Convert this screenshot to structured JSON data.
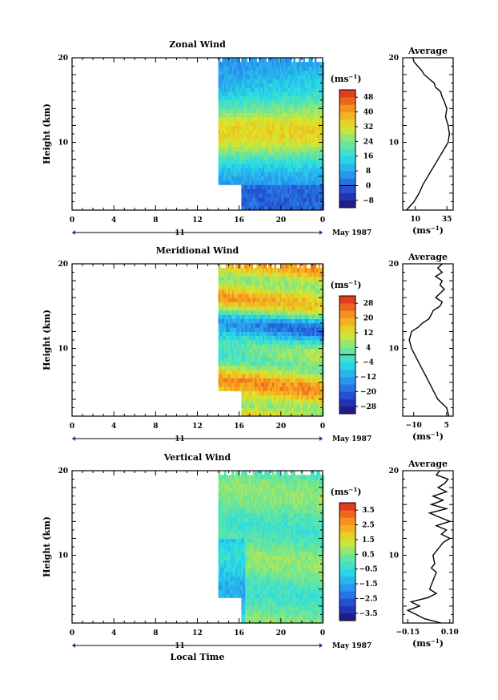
{
  "chart_data": [
    {
      "type": "heatmap",
      "title": "Zonal Wind",
      "xlabel": "",
      "ylabel": "Height (km)",
      "x_ticks": [
        "0",
        "4",
        "8",
        "12",
        "16",
        "20",
        "0"
      ],
      "day_label": "11",
      "month_label": "May 1987",
      "xlim": [
        0,
        24
      ],
      "ylim": [
        2,
        20
      ],
      "y_ticks": [
        "20",
        "10"
      ],
      "data_start_time": 14,
      "data_low_start_time": 16.2,
      "data_low_cut_km": 5.0,
      "colorbar": {
        "unit": "(ms",
        "unit_exp": "−1",
        "ticks": [
          "48",
          "40",
          "32",
          "24",
          "16",
          "8",
          "0",
          "−8"
        ],
        "min": -12,
        "max": 52,
        "zero_line": 0
      },
      "profile": {
        "title": "Average",
        "xlabel": "(ms",
        "xlabel_exp": "−1",
        "x_ticks": [
          "10",
          "35"
        ],
        "xlim": [
          0,
          40
        ],
        "y_ticks": [
          "20",
          "10"
        ],
        "points": [
          [
            3,
            2
          ],
          [
            9,
            3
          ],
          [
            13,
            4
          ],
          [
            16,
            5
          ],
          [
            20,
            6
          ],
          [
            22,
            6.5
          ],
          [
            24,
            7
          ],
          [
            28,
            8
          ],
          [
            32,
            9
          ],
          [
            36,
            10
          ],
          [
            37,
            11
          ],
          [
            36,
            12
          ],
          [
            34,
            13
          ],
          [
            35,
            14
          ],
          [
            33,
            14.8
          ],
          [
            31,
            15.5
          ],
          [
            30,
            16
          ],
          [
            26,
            16.5
          ],
          [
            25,
            17
          ],
          [
            21,
            17.5
          ],
          [
            17,
            18
          ],
          [
            15,
            18.5
          ],
          [
            12,
            19
          ],
          [
            9,
            19.5
          ],
          [
            8,
            20
          ]
        ]
      }
    },
    {
      "type": "heatmap",
      "title": "Meridional Wind",
      "xlabel": "",
      "ylabel": "Height (km)",
      "x_ticks": [
        "0",
        "4",
        "8",
        "12",
        "16",
        "20",
        "0"
      ],
      "day_label": "11",
      "month_label": "May 1987",
      "xlim": [
        0,
        24
      ],
      "ylim": [
        2,
        20
      ],
      "y_ticks": [
        "20",
        "10"
      ],
      "data_start_time": 14,
      "data_low_start_time": 16.2,
      "data_low_cut_km": 5.0,
      "colorbar": {
        "unit": "(ms",
        "unit_exp": "−1",
        "ticks": [
          "28",
          "20",
          "12",
          "4",
          "−4",
          "−12",
          "−20",
          "−28"
        ],
        "min": -32,
        "max": 32,
        "zero_line": 0
      },
      "profile": {
        "title": "Average",
        "xlabel": "(ms",
        "xlabel_exp": "−1",
        "x_ticks": [
          "−10",
          "5"
        ],
        "xlim": [
          -15,
          8
        ],
        "y_ticks": [
          "20",
          "10"
        ],
        "points": [
          [
            6,
            2
          ],
          [
            5,
            3
          ],
          [
            3,
            3.5
          ],
          [
            1,
            4
          ],
          [
            -1,
            5
          ],
          [
            -3,
            6
          ],
          [
            -5,
            7
          ],
          [
            -7,
            8
          ],
          [
            -9,
            9
          ],
          [
            -11,
            10
          ],
          [
            -12,
            11
          ],
          [
            -11,
            12
          ],
          [
            -8,
            12.5
          ],
          [
            -6,
            13
          ],
          [
            -3,
            13.5
          ],
          [
            -2,
            14
          ],
          [
            -1,
            14.5
          ],
          [
            2,
            15
          ],
          [
            3,
            15.5
          ],
          [
            0,
            16
          ],
          [
            2,
            16.5
          ],
          [
            4,
            17
          ],
          [
            2,
            17.5
          ],
          [
            3,
            18
          ],
          [
            0,
            18.5
          ],
          [
            3,
            19
          ],
          [
            1,
            19.5
          ],
          [
            3,
            20
          ]
        ]
      }
    },
    {
      "type": "heatmap",
      "title": "Vertical Wind",
      "xlabel": "Local Time",
      "ylabel": "Height (km)",
      "x_ticks": [
        "0",
        "4",
        "8",
        "12",
        "16",
        "20",
        "0"
      ],
      "day_label": "11",
      "month_label": "May 1987",
      "xlim": [
        0,
        24
      ],
      "ylim": [
        2,
        20
      ],
      "y_ticks": [
        "20",
        "10"
      ],
      "data_start_time": 14,
      "data_low_start_time": 16.2,
      "data_low_cut_km": 5.0,
      "colorbar": {
        "unit": "(ms",
        "unit_exp": "−1",
        "ticks": [
          "3.5",
          "2.5",
          "1.5",
          "0.5",
          "−0.5",
          "−1.5",
          "−2.5",
          "−3.5"
        ],
        "min": -4,
        "max": 4
      },
      "profile": {
        "title": "Average",
        "xlabel": "(ms",
        "xlabel_exp": "−1",
        "x_ticks": [
          "−0.15",
          "0.10"
        ],
        "xlim": [
          -0.18,
          0.12
        ],
        "y_ticks": [
          "20",
          "10"
        ],
        "points": [
          [
            0.05,
            2
          ],
          [
            -0.05,
            2.5
          ],
          [
            -0.1,
            3
          ],
          [
            -0.15,
            3.5
          ],
          [
            -0.08,
            4
          ],
          [
            -0.13,
            4.5
          ],
          [
            -0.03,
            5
          ],
          [
            0.02,
            5.5
          ],
          [
            -0.02,
            6
          ],
          [
            0.0,
            7
          ],
          [
            0.02,
            8
          ],
          [
            -0.01,
            8.5
          ],
          [
            0.01,
            9
          ],
          [
            0.0,
            10
          ],
          [
            0.02,
            10.5
          ],
          [
            0.04,
            11
          ],
          [
            0.06,
            11.5
          ],
          [
            0.1,
            12
          ],
          [
            0.05,
            12.5
          ],
          [
            0.08,
            13
          ],
          [
            0.02,
            13.5
          ],
          [
            0.1,
            14
          ],
          [
            0.04,
            14.5
          ],
          [
            -0.02,
            15
          ],
          [
            0.08,
            15.5
          ],
          [
            -0.01,
            16
          ],
          [
            0.06,
            16.5
          ],
          [
            0.0,
            17
          ],
          [
            0.08,
            17.5
          ],
          [
            0.03,
            18
          ],
          [
            0.07,
            18.5
          ],
          [
            0.09,
            19
          ],
          [
            0.02,
            19.5
          ],
          [
            0.04,
            20
          ]
        ]
      }
    }
  ]
}
